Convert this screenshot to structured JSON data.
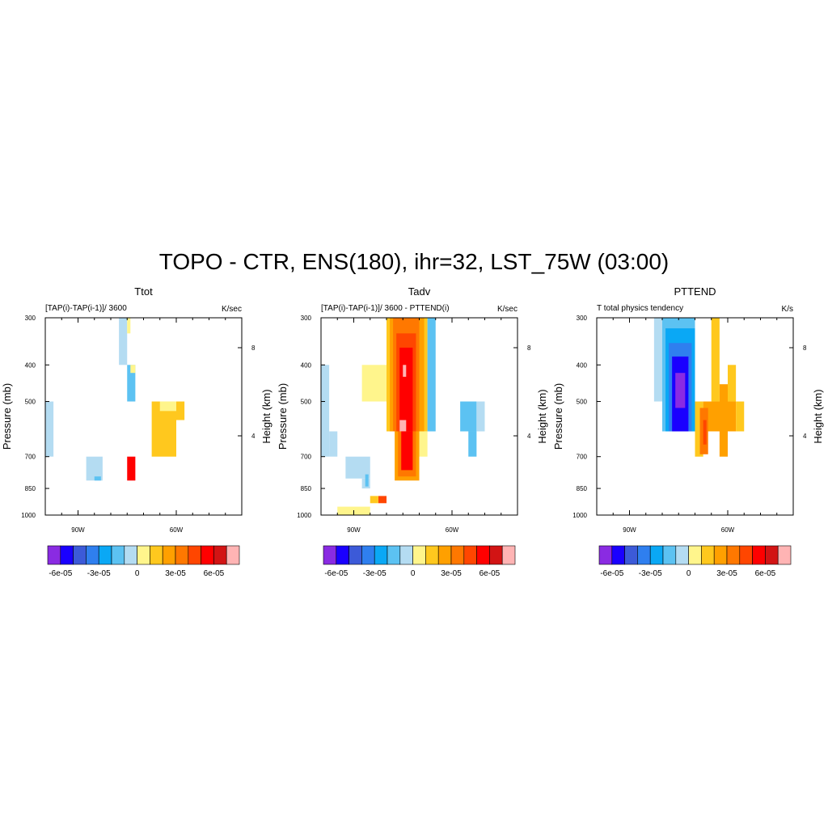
{
  "figure": {
    "title": "TOPO - CTR, ENS(180), ihr=32, LST_75W (03:00)"
  },
  "colorbar": {
    "colors": [
      "#8a2be2",
      "#1a00ff",
      "#3c5ad8",
      "#2f7fef",
      "#0aa8f5",
      "#5cc2f2",
      "#b4dcf2",
      "#fff58c",
      "#ffc81e",
      "#ffa000",
      "#ff7800",
      "#ff4600",
      "#ff0000",
      "#d21414",
      "#ffb4b4"
    ],
    "labels": [
      "-6e-05",
      "-3e-05",
      "0",
      "3e-05",
      "6e-05"
    ]
  },
  "chart_data": [
    {
      "type": "heatmap",
      "title": "Ttot",
      "subtitle": "[TAP(i)-TAP(i-1)]/ 3600",
      "units": "K/sec",
      "ylabel": "Pressure (mb)",
      "y2label": "Height (km)",
      "x_ticks": [
        "90W",
        "60W"
      ],
      "x_tick_values": [
        -90,
        -60
      ],
      "xlim": [
        -100,
        -40
      ],
      "y_ticks": [
        "300",
        "400",
        "500",
        "700",
        "850",
        "1000"
      ],
      "y_tick_values": [
        300,
        400,
        500,
        700,
        850,
        1000
      ],
      "ylim": [
        300,
        1000
      ],
      "y2_ticks": [
        "8",
        "4"
      ],
      "cells": [
        {
          "x": [
            -100,
            -97.5
          ],
          "p": [
            500,
            700
          ],
          "level": 6
        },
        {
          "x": [
            -87.5,
            -82.5
          ],
          "p": [
            700,
            810
          ],
          "level": 6
        },
        {
          "x": [
            -85,
            -83
          ],
          "p": [
            790,
            810
          ],
          "level": 5
        },
        {
          "x": [
            -77.5,
            -75
          ],
          "p": [
            300,
            400
          ],
          "level": 6
        },
        {
          "x": [
            -75,
            -74
          ],
          "p": [
            300,
            330
          ],
          "level": 7
        },
        {
          "x": [
            -75,
            -72.5
          ],
          "p": [
            400,
            500
          ],
          "level": 5
        },
        {
          "x": [
            -74,
            -72.5
          ],
          "p": [
            400,
            420
          ],
          "level": 7
        },
        {
          "x": [
            -75,
            -72.5
          ],
          "p": [
            700,
            810
          ],
          "level": 12
        },
        {
          "x": [
            -67.5,
            -60
          ],
          "p": [
            500,
            700
          ],
          "level": 8
        },
        {
          "x": [
            -60,
            -57.5
          ],
          "p": [
            500,
            560
          ],
          "level": 8
        },
        {
          "x": [
            -65,
            -60
          ],
          "p": [
            500,
            530
          ],
          "level": 7
        }
      ]
    },
    {
      "type": "heatmap",
      "title": "Tadv",
      "subtitle": "[TAP(i)-TAP(i-1)]/ 3600 - PTTEND(i)",
      "units": "K/sec",
      "ylabel": "Pressure (mb)",
      "y2label": "Height (km)",
      "x_ticks": [
        "90W",
        "60W"
      ],
      "x_tick_values": [
        -90,
        -60
      ],
      "xlim": [
        -100,
        -40
      ],
      "y_ticks": [
        "300",
        "400",
        "500",
        "700",
        "850",
        "1000"
      ],
      "y_tick_values": [
        300,
        400,
        500,
        700,
        850,
        1000
      ],
      "ylim": [
        300,
        1000
      ],
      "y2_ticks": [
        "8",
        "4"
      ],
      "cells": [
        {
          "x": [
            -100,
            -97.5
          ],
          "p": [
            400,
            700
          ],
          "level": 6
        },
        {
          "x": [
            -97.5,
            -95
          ],
          "p": [
            600,
            700
          ],
          "level": 6
        },
        {
          "x": [
            -87.5,
            -80
          ],
          "p": [
            400,
            500
          ],
          "level": 7
        },
        {
          "x": [
            -92.5,
            -85
          ],
          "p": [
            700,
            800
          ],
          "level": 6
        },
        {
          "x": [
            -87.5,
            -85
          ],
          "p": [
            800,
            850
          ],
          "level": 6
        },
        {
          "x": [
            -86.5,
            -85.5
          ],
          "p": [
            780,
            840
          ],
          "level": 5
        },
        {
          "x": [
            -80,
            -67.5
          ],
          "p": [
            300,
            600
          ],
          "level": 8
        },
        {
          "x": [
            -79,
            -68.5
          ],
          "p": [
            300,
            600
          ],
          "level": 9
        },
        {
          "x": [
            -78,
            -70
          ],
          "p": [
            300,
            600
          ],
          "level": 10
        },
        {
          "x": [
            -77,
            -71
          ],
          "p": [
            330,
            600
          ],
          "level": 11
        },
        {
          "x": [
            -76,
            -72
          ],
          "p": [
            360,
            600
          ],
          "level": 12
        },
        {
          "x": [
            -76,
            -74
          ],
          "p": [
            560,
            600
          ],
          "level": 14
        },
        {
          "x": [
            -75,
            -74
          ],
          "p": [
            400,
            430
          ],
          "level": 14
        },
        {
          "x": [
            -77.5,
            -70
          ],
          "p": [
            600,
            810
          ],
          "level": 9
        },
        {
          "x": [
            -76.5,
            -71
          ],
          "p": [
            600,
            790
          ],
          "level": 10
        },
        {
          "x": [
            -75.5,
            -72
          ],
          "p": [
            600,
            760
          ],
          "level": 12
        },
        {
          "x": [
            -70,
            -67.5
          ],
          "p": [
            600,
            700
          ],
          "level": 7
        },
        {
          "x": [
            -67.5,
            -65
          ],
          "p": [
            300,
            600
          ],
          "level": 5
        },
        {
          "x": [
            -57.5,
            -52.5
          ],
          "p": [
            500,
            600
          ],
          "level": 5
        },
        {
          "x": [
            -52.5,
            -50
          ],
          "p": [
            500,
            600
          ],
          "level": 6
        },
        {
          "x": [
            -55,
            -52.5
          ],
          "p": [
            600,
            700
          ],
          "level": 5
        },
        {
          "x": [
            -82.5,
            -80
          ],
          "p": [
            890,
            930
          ],
          "level": 11
        },
        {
          "x": [
            -85,
            -82.5
          ],
          "p": [
            890,
            930
          ],
          "level": 8
        },
        {
          "x": [
            -95,
            -85
          ],
          "p": [
            950,
            1000
          ],
          "level": 7
        }
      ]
    },
    {
      "type": "heatmap",
      "title": "PTTEND",
      "subtitle": "T total physics tendency",
      "units": "K/s",
      "ylabel": "Pressure (mb)",
      "y2label": "Height (km)",
      "x_ticks": [
        "90W",
        "60W"
      ],
      "x_tick_values": [
        -90,
        -60
      ],
      "xlim": [
        -100,
        -40
      ],
      "y_ticks": [
        "300",
        "400",
        "500",
        "700",
        "850",
        "1000"
      ],
      "y_tick_values": [
        300,
        400,
        500,
        700,
        850,
        1000
      ],
      "ylim": [
        300,
        1000
      ],
      "y2_ticks": [
        "8",
        "4"
      ],
      "cells": [
        {
          "x": [
            -82.5,
            -70
          ],
          "p": [
            300,
            500
          ],
          "level": 6
        },
        {
          "x": [
            -80,
            -70
          ],
          "p": [
            300,
            600
          ],
          "level": 5
        },
        {
          "x": [
            -79,
            -70
          ],
          "p": [
            320,
            600
          ],
          "level": 4
        },
        {
          "x": [
            -78,
            -71
          ],
          "p": [
            350,
            600
          ],
          "level": 3
        },
        {
          "x": [
            -77,
            -72
          ],
          "p": [
            380,
            600
          ],
          "level": 1
        },
        {
          "x": [
            -76,
            -73
          ],
          "p": [
            420,
            520
          ],
          "level": 0
        },
        {
          "x": [
            -70,
            -67.5
          ],
          "p": [
            500,
            700
          ],
          "level": 8
        },
        {
          "x": [
            -67.5,
            -57.5
          ],
          "p": [
            500,
            600
          ],
          "level": 9
        },
        {
          "x": [
            -65,
            -62.5
          ],
          "p": [
            300,
            500
          ],
          "level": 8
        },
        {
          "x": [
            -62.5,
            -60
          ],
          "p": [
            450,
            700
          ],
          "level": 9
        },
        {
          "x": [
            -60,
            -57.5
          ],
          "p": [
            400,
            500
          ],
          "level": 8
        },
        {
          "x": [
            -57.5,
            -55
          ],
          "p": [
            500,
            600
          ],
          "level": 8
        },
        {
          "x": [
            -68.5,
            -66
          ],
          "p": [
            520,
            690
          ],
          "level": 10
        },
        {
          "x": [
            -67.5,
            -66.5
          ],
          "p": [
            560,
            650
          ],
          "level": 11
        }
      ]
    }
  ]
}
